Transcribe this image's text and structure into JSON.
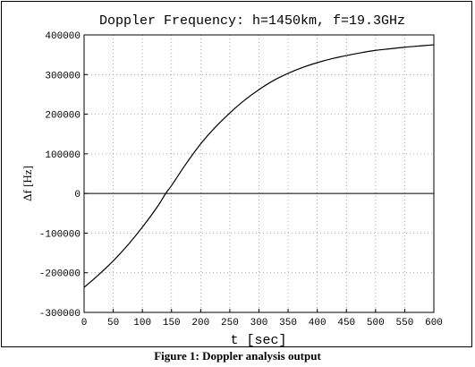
{
  "caption": "Figure 1: Doppler analysis output",
  "chart_data": {
    "type": "line",
    "title": "Doppler Frequency: h=1450km, f=19.3GHz",
    "xlabel": "t [sec]",
    "ylabel": "Δf [Hz]",
    "xlim": [
      0,
      600
    ],
    "ylim": [
      -300000,
      400000
    ],
    "x_ticks": [
      "0",
      "50",
      "100",
      "150",
      "200",
      "250",
      "300",
      "350",
      "400",
      "450",
      "500",
      "550",
      "600"
    ],
    "y_ticks": [
      "400000",
      "300000",
      "200000",
      "100000",
      "0",
      "-100000",
      "-200000",
      "-300000"
    ],
    "grid": true,
    "zero_line": true,
    "series": [
      {
        "x": [
          0,
          25,
          50,
          75,
          100,
          125,
          140,
          150,
          175,
          200,
          225,
          250,
          275,
          300,
          325,
          350,
          375,
          400,
          425,
          450,
          475,
          500,
          525,
          550,
          575,
          600
        ],
        "values": [
          -237000,
          -205000,
          -170000,
          -130000,
          -85000,
          -35000,
          0,
          20000,
          75000,
          125000,
          167000,
          203000,
          235000,
          262000,
          285000,
          303000,
          318000,
          330000,
          340000,
          348000,
          355000,
          361000,
          365000,
          369000,
          372000,
          375000
        ]
      }
    ]
  }
}
